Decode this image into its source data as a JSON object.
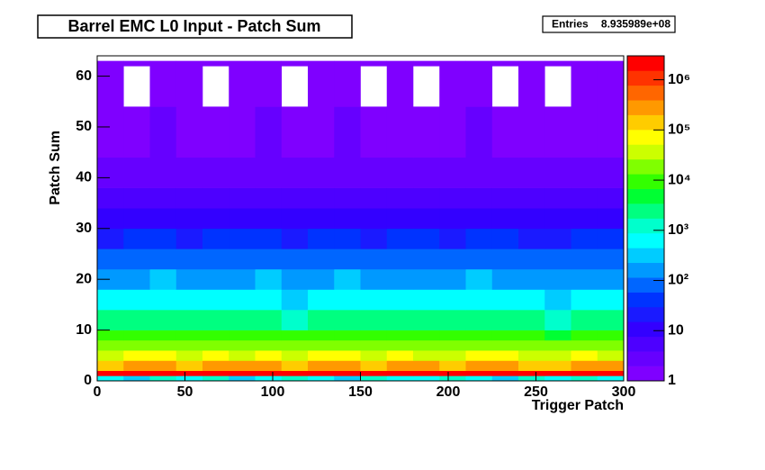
{
  "chart_data": {
    "type": "heatmap",
    "title": "Barrel EMC L0 Input - Patch Sum",
    "stats": {
      "label": "Entries",
      "value": "8.935989e+08"
    },
    "x_label": "Trigger Patch",
    "y_label": "Patch Sum",
    "xlim": [
      0,
      300
    ],
    "ylim": [
      0,
      64
    ],
    "xticks": [
      0,
      50,
      100,
      150,
      200,
      250,
      300
    ],
    "yticks": [
      0,
      10,
      20,
      30,
      40,
      50,
      60
    ],
    "zlim": [
      1,
      3000000
    ],
    "zlog": true,
    "zticks": [
      {
        "value": 1,
        "label": "1"
      },
      {
        "value": 10,
        "label": "10"
      },
      {
        "value": 100,
        "label": "10²"
      },
      {
        "value": 1000,
        "label": "10³"
      },
      {
        "value": 10000,
        "label": "10⁴"
      },
      {
        "value": 100000,
        "label": "10⁵"
      },
      {
        "value": 1000000,
        "label": "10⁶"
      }
    ],
    "palette": [
      "#7f00ff",
      "#6600ff",
      "#4d00ff",
      "#3300ff",
      "#1a1aff",
      "#0033ff",
      "#0066ff",
      "#0099ff",
      "#00ccff",
      "#00ffff",
      "#00ffcc",
      "#00ff80",
      "#00ff33",
      "#33ff00",
      "#80ff00",
      "#ccff00",
      "#ffff00",
      "#ffcc00",
      "#ff9900",
      "#ff6600",
      "#ff3300",
      "#ff0000"
    ],
    "xbins": [
      0,
      15,
      30,
      45,
      60,
      75,
      90,
      105,
      120,
      135,
      150,
      165,
      180,
      195,
      210,
      225,
      240,
      255,
      270,
      285,
      300
    ],
    "ybins": [
      0,
      1,
      2,
      4,
      6,
      8,
      10,
      14,
      18,
      22,
      26,
      30,
      34,
      38,
      44,
      54,
      62,
      63
    ],
    "z": [
      [
        800,
        300,
        1200,
        500,
        900,
        400,
        700,
        1500,
        600,
        300,
        1000,
        800,
        500,
        1100,
        700,
        400,
        900,
        600,
        1300,
        500
      ],
      [
        2500000,
        2800000,
        3000000,
        2600000,
        2900000,
        2700000,
        3000000,
        2400000,
        2800000,
        3000000,
        2600000,
        2900000,
        2500000,
        2700000,
        3000000,
        2800000,
        2600000,
        2400000,
        2900000,
        2700000
      ],
      [
        180000,
        210000,
        240000,
        190000,
        220000,
        200000,
        230000,
        170000,
        210000,
        250000,
        190000,
        220000,
        200000,
        180000,
        230000,
        210000,
        190000,
        160000,
        220000,
        200000
      ],
      [
        45000,
        52000,
        60000,
        47000,
        55000,
        50000,
        58000,
        42000,
        52000,
        62000,
        47000,
        55000,
        50000,
        45000,
        57000,
        52000,
        47000,
        40000,
        55000,
        50000
      ],
      [
        18000,
        21000,
        24000,
        19000,
        22000,
        20000,
        23000,
        17000,
        21000,
        25000,
        19000,
        22000,
        20000,
        18000,
        23000,
        21000,
        19000,
        16000,
        22000,
        20000
      ],
      [
        7000,
        8500,
        9500,
        7500,
        8800,
        8000,
        9200,
        6800,
        8400,
        10000,
        7600,
        8800,
        8000,
        7200,
        9200,
        8400,
        7600,
        6400,
        8800,
        8000
      ],
      [
        1800,
        2100,
        2400,
        1900,
        2200,
        2000,
        2300,
        1700,
        2100,
        2500,
        1900,
        2200,
        2000,
        1800,
        2300,
        2100,
        1900,
        1600,
        2200,
        2000
      ],
      [
        450,
        520,
        600,
        470,
        550,
        500,
        580,
        420,
        520,
        620,
        470,
        550,
        500,
        450,
        570,
        520,
        470,
        400,
        550,
        500
      ],
      [
        180,
        210,
        240,
        190,
        220,
        200,
        230,
        170,
        210,
        250,
        190,
        220,
        200,
        180,
        230,
        210,
        190,
        160,
        220,
        200
      ],
      [
        70,
        85,
        95,
        75,
        88,
        80,
        92,
        68,
        84,
        100,
        76,
        88,
        80,
        72,
        92,
        84,
        76,
        64,
        88,
        80
      ],
      [
        27,
        32,
        36,
        28,
        33,
        30,
        35,
        25,
        32,
        38,
        28,
        33,
        30,
        27,
        35,
        32,
        28,
        24,
        33,
        30
      ],
      [
        11,
        13,
        15,
        11,
        13,
        12,
        14,
        10,
        13,
        15,
        11,
        13,
        12,
        11,
        14,
        13,
        11,
        10,
        13,
        12
      ],
      [
        5,
        6,
        7,
        5,
        6,
        5,
        6,
        4,
        6,
        7,
        5,
        6,
        5,
        5,
        6,
        6,
        5,
        4,
        6,
        5
      ],
      [
        2,
        3,
        3,
        2,
        3,
        2,
        3,
        2,
        3,
        3,
        2,
        3,
        2,
        2,
        3,
        3,
        2,
        2,
        3,
        2
      ],
      [
        1,
        1,
        2,
        1,
        1,
        1,
        2,
        1,
        1,
        2,
        1,
        1,
        1,
        1,
        2,
        1,
        1,
        1,
        1,
        1
      ],
      [
        1,
        0,
        1,
        1,
        0,
        1,
        1,
        0,
        1,
        1,
        0,
        1,
        0,
        1,
        1,
        0,
        1,
        0,
        1,
        1
      ],
      [
        1,
        1,
        1,
        1,
        1,
        1,
        1,
        1,
        1,
        1,
        1,
        1,
        1,
        1,
        1,
        1,
        1,
        1,
        1,
        1
      ]
    ]
  }
}
